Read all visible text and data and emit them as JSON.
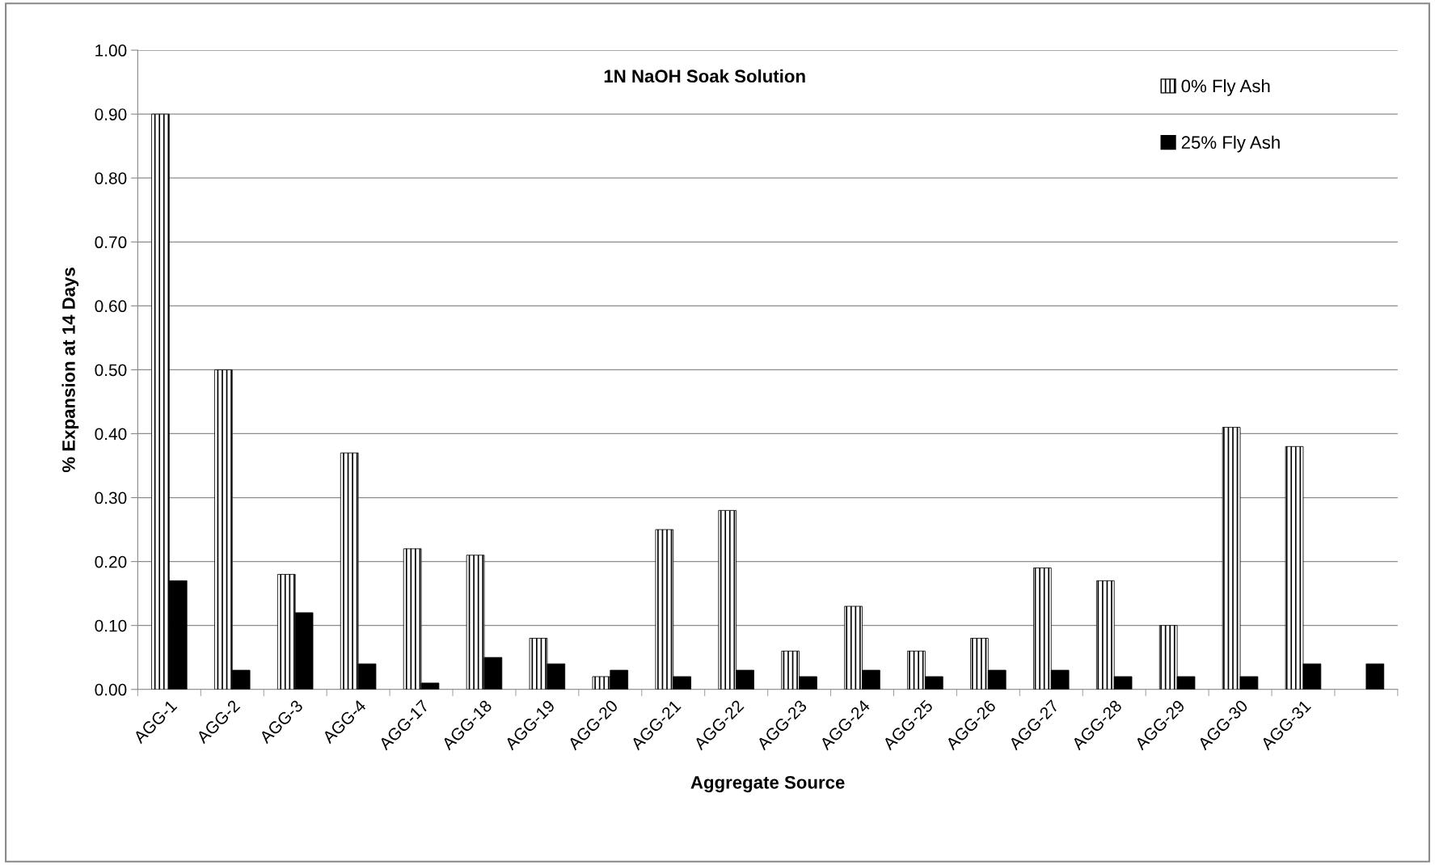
{
  "chart_data": {
    "type": "bar",
    "title": "1N NaOH Soak Solution",
    "xlabel": "Aggregate Source",
    "ylabel": "% Expansion at 14 Days",
    "categories": [
      "AGG-1",
      "AGG-2",
      "AGG-3",
      "AGG-4",
      "AGG-17",
      "AGG-18",
      "AGG-19",
      "AGG-20",
      "AGG-21",
      "AGG-22",
      "AGG-23",
      "AGG-24",
      "AGG-25",
      "AGG-26",
      "AGG-27",
      "AGG-28",
      "AGG-29",
      "AGG-30",
      "AGG-31",
      null
    ],
    "series": [
      {
        "name": "0% Fly Ash",
        "color": "#000000",
        "values": [
          0.9,
          0.5,
          0.18,
          0.37,
          0.22,
          0.21,
          0.08,
          0.02,
          0.25,
          0.28,
          0.06,
          0.13,
          0.06,
          0.08,
          0.19,
          0.17,
          0.1,
          0.41,
          0.38,
          null
        ]
      },
      {
        "name": "25% Fly Ash",
        "color": "#000000",
        "values": [
          0.17,
          0.03,
          0.12,
          0.04,
          0.01,
          0.05,
          0.04,
          0.03,
          0.02,
          0.03,
          0.02,
          0.03,
          0.02,
          0.03,
          0.03,
          0.02,
          0.02,
          0.02,
          0.04,
          0.04
        ]
      }
    ],
    "ylim": [
      0,
      1.0
    ],
    "yticks": [
      {
        "value": 0,
        "label": "0.00"
      },
      {
        "value": 0.1,
        "label": "0.10"
      },
      {
        "value": 0.2,
        "label": "0.20"
      },
      {
        "value": 0.3,
        "label": "0.30"
      },
      {
        "value": 0.4,
        "label": "0.40"
      },
      {
        "value": 0.5,
        "label": "0.50"
      },
      {
        "value": 0.6,
        "label": "0.60"
      },
      {
        "value": 0.7,
        "label": "0.70"
      },
      {
        "value": 0.8,
        "label": "0.80"
      },
      {
        "value": 0.9,
        "label": "0.90"
      },
      {
        "value": 1.0,
        "label": "1.00"
      }
    ],
    "grid": "y",
    "legend": "top right"
  }
}
